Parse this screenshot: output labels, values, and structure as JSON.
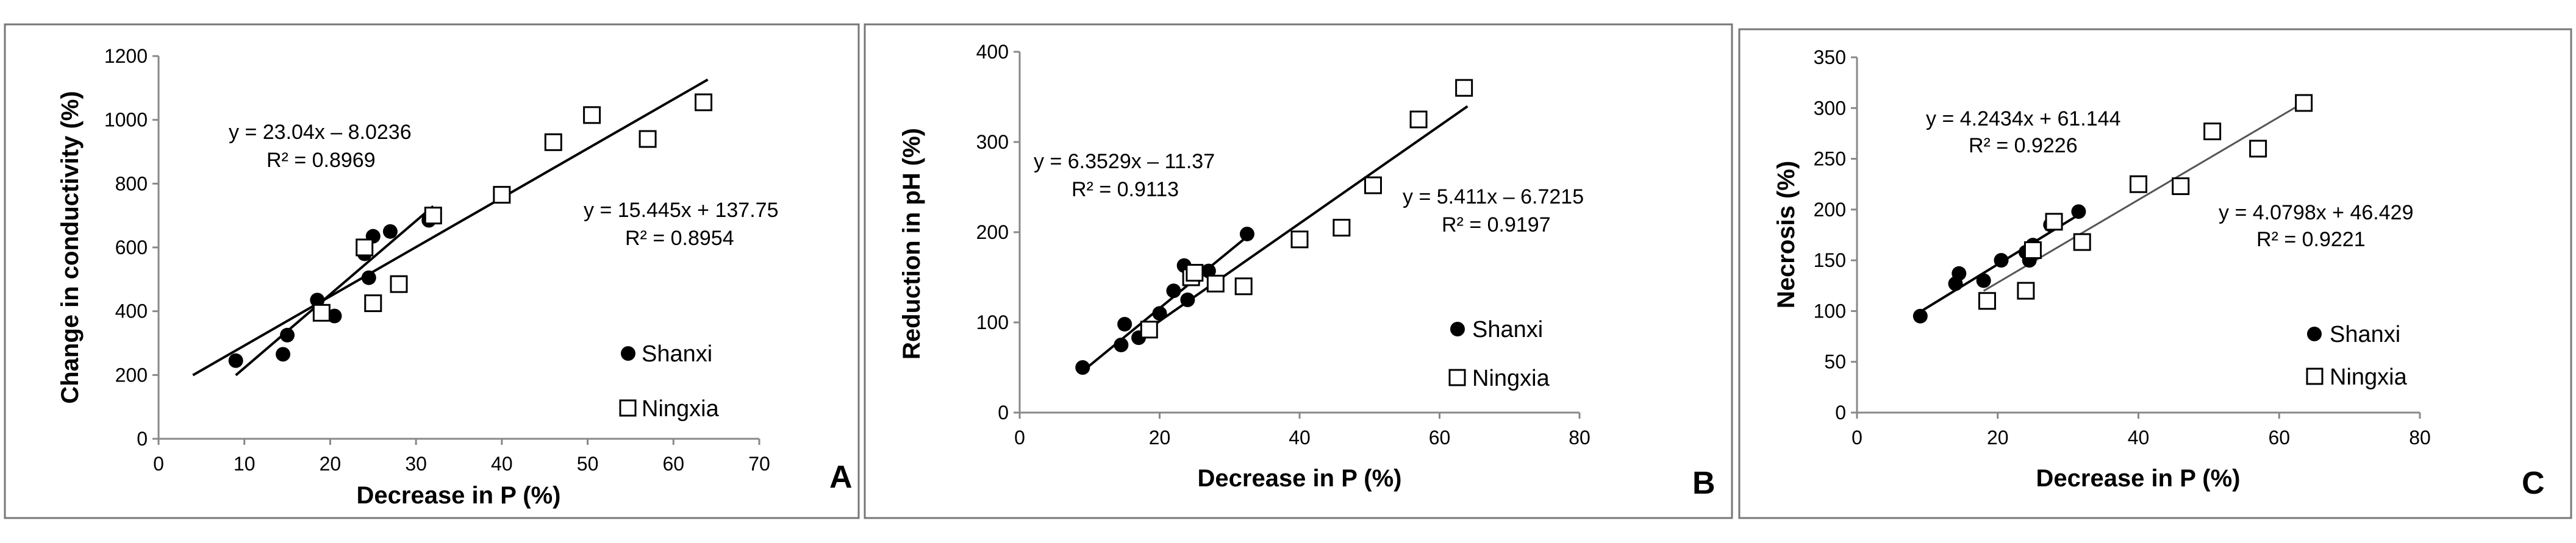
{
  "chart_data": [
    {
      "panel": "A",
      "type": "scatter",
      "xlabel": "Decrease in P (%)",
      "ylabel": "Change in conductivity (%)",
      "xlim": [
        0,
        70
      ],
      "ylim": [
        0,
        1200
      ],
      "xticks": [
        "0",
        "10",
        "20",
        "30",
        "40",
        "50",
        "60",
        "70"
      ],
      "yticks": [
        "0",
        "200",
        "400",
        "600",
        "800",
        "1000",
        "1200"
      ],
      "series": [
        {
          "name": "Shanxi",
          "marker": "filled-circle",
          "x": [
            9,
            14.5,
            15,
            18.5,
            20.5,
            24,
            24.5,
            25,
            27,
            31.5
          ],
          "y": [
            245,
            265,
            325,
            435,
            385,
            580,
            505,
            635,
            650,
            685
          ]
        },
        {
          "name": "Ningxia",
          "marker": "open-square",
          "x": [
            19,
            24,
            25,
            28,
            32,
            40,
            46,
            50.5,
            57,
            63.5
          ],
          "y": [
            395,
            600,
            425,
            485,
            700,
            765,
            930,
            1015,
            940,
            1055
          ]
        }
      ],
      "fits": [
        {
          "series": "Shanxi",
          "equation": "y = 23.04x – 8.0236",
          "r2": "R² = 0.8969",
          "slope": 23.04,
          "intercept": -8.0236,
          "x_range": [
            9,
            32
          ]
        },
        {
          "series": "Ningxia",
          "equation": "y = 15.445x + 137.75",
          "r2": "R² = 0.8954",
          "slope": 15.445,
          "intercept": 137.75,
          "x_range": [
            4,
            64
          ]
        }
      ],
      "legend": [
        "Shanxi",
        "Ningxia"
      ]
    },
    {
      "panel": "B",
      "type": "scatter",
      "xlabel": "Decrease in P (%)",
      "ylabel": "Reduction in pH (%)",
      "xlim": [
        0,
        80
      ],
      "ylim": [
        0,
        400
      ],
      "xticks": [
        "0",
        "20",
        "40",
        "60",
        "80"
      ],
      "yticks": [
        "0",
        "100",
        "200",
        "300",
        "400"
      ],
      "series": [
        {
          "name": "Shanxi",
          "marker": "filled-circle",
          "x": [
            9,
            14.5,
            15,
            17,
            20,
            22,
            23.5,
            24,
            25,
            27,
            32.5
          ],
          "y": [
            50,
            75,
            98,
            83,
            110,
            135,
            163,
            125,
            150,
            157,
            198
          ]
        },
        {
          "name": "Ningxia",
          "marker": "open-square",
          "x": [
            18.5,
            24.5,
            25,
            28,
            32,
            40,
            46,
            50.5,
            57,
            63.5
          ],
          "y": [
            92,
            150,
            155,
            143,
            140,
            192,
            205,
            252,
            325,
            360
          ]
        }
      ],
      "fits": [
        {
          "series": "Shanxi",
          "equation": "y = 6.3529x – 11.37",
          "r2": "R² = 0.9113",
          "slope": 6.3529,
          "intercept": -11.37,
          "x_range": [
            9,
            33
          ]
        },
        {
          "series": "Ningxia",
          "equation": "y = 5.411x – 6.7215",
          "r2": "R² = 0.9197",
          "slope": 5.411,
          "intercept": -6.7215,
          "x_range": [
            18,
            64
          ]
        }
      ],
      "legend": [
        "Shanxi",
        "Ningxia"
      ]
    },
    {
      "panel": "C",
      "type": "scatter",
      "xlabel": "Decrease in P (%)",
      "ylabel": "Necrosis (%)",
      "xlim": [
        0,
        80
      ],
      "ylim": [
        0,
        350
      ],
      "xticks": [
        "0",
        "20",
        "40",
        "60",
        "80"
      ],
      "yticks": [
        "0",
        "50",
        "100",
        "150",
        "200",
        "250",
        "300",
        "350"
      ],
      "series": [
        {
          "name": "Shanxi",
          "marker": "filled-circle",
          "x": [
            9,
            14,
            14.5,
            18,
            20.5,
            24,
            24.5,
            25,
            27.5,
            31.5
          ],
          "y": [
            95,
            127,
            137,
            130,
            150,
            158,
            150,
            165,
            185,
            198
          ]
        },
        {
          "name": "Ningxia",
          "marker": "open-square",
          "x": [
            18.5,
            24,
            25,
            28,
            32,
            40,
            46,
            50.5,
            57,
            63.5
          ],
          "y": [
            110,
            120,
            160,
            188,
            168,
            225,
            223,
            277,
            260,
            305
          ]
        }
      ],
      "fits": [
        {
          "series": "Shanxi",
          "equation": "y = 4.2434x + 61.144",
          "r2": "R² = 0.9226",
          "slope": 4.2434,
          "intercept": 61.144,
          "x_range": [
            9,
            32
          ]
        },
        {
          "series": "Ningxia",
          "equation": "y = 4.0798x + 46.429",
          "r2": "R² = 0.9221",
          "slope": 4.0798,
          "intercept": 46.429,
          "x_range": [
            18,
            64
          ]
        }
      ],
      "legend": [
        "Shanxi",
        "Ningxia"
      ]
    }
  ]
}
